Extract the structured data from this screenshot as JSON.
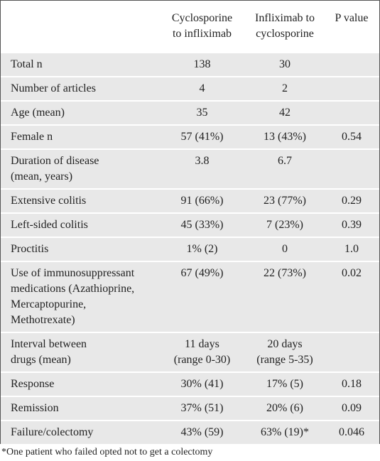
{
  "table": {
    "header": [
      "Cyclosporine\nto infliximab",
      "Infliximab to\ncyclosporine",
      "P value"
    ],
    "rows": [
      [
        "Total n",
        "138",
        "30"
      ],
      [
        "Number of articles",
        "4",
        "2"
      ],
      [
        "Age (mean)",
        "35",
        "42"
      ],
      [
        "Female n",
        "57 (41%)",
        "13 (43%)",
        "0.54"
      ],
      [
        "Duration of disease\n(mean, years)",
        "3.8",
        "6.7"
      ],
      [
        "Extensive colitis",
        "91 (66%)",
        "23 (77%)",
        "0.29"
      ],
      [
        "Left-sided colitis",
        "45 (33%)",
        "7 (23%)",
        "0.39"
      ],
      [
        "Proctitis",
        "1% (2)",
        "0",
        "1.0"
      ],
      [
        "Use of immunosuppressant\nmedications (Azathioprine,\nMercaptopurine,\nMethotrexate)",
        "67 (49%)",
        "22 (73%)",
        "0.02"
      ],
      [
        "Interval between\ndrugs (mean)",
        "11 days\n(range 0-30)",
        "20 days\n(range 5-35)"
      ],
      [
        "Response",
        "30% (41)",
        "17% (5)",
        "0.18"
      ],
      [
        "Remission",
        "37% (51)",
        "20% (6)",
        "0.09"
      ],
      [
        "Failure/colectomy",
        "43% (59)",
        "63% (19)*",
        "0.046"
      ]
    ]
  },
  "footnote": "*One patient who failed opted not to get a colectomy"
}
